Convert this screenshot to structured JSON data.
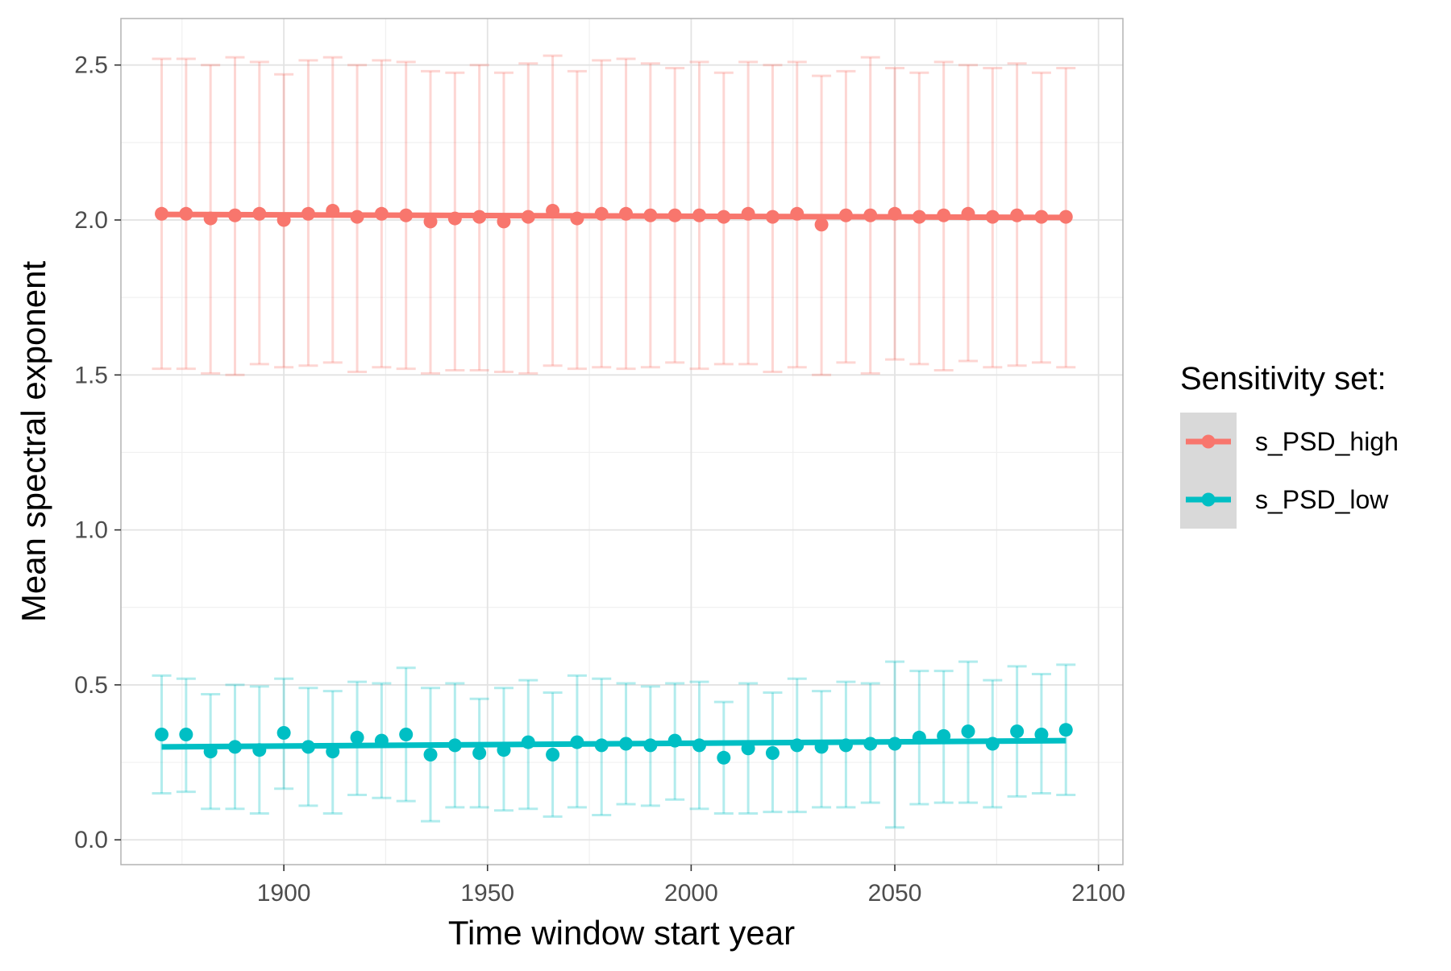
{
  "chart_data": {
    "type": "line",
    "title": "",
    "xlabel": "Time window start year",
    "ylabel": "Mean spectral exponent",
    "xlim": [
      1860,
      2106
    ],
    "ylim": [
      -0.08,
      2.65
    ],
    "x_ticks": [
      1900,
      1950,
      2000,
      2050,
      2100
    ],
    "y_ticks": [
      0.0,
      0.5,
      1.0,
      1.5,
      2.0,
      2.5
    ],
    "x_tick_labels": [
      "1900",
      "1950",
      "2000",
      "2050",
      "2100"
    ],
    "y_tick_labels": [
      "0.0",
      "0.5",
      "1.0",
      "1.5",
      "2.0",
      "2.5"
    ],
    "grid": true,
    "legend": {
      "title": "Sensitivity set:",
      "position": "right"
    },
    "x": [
      1870,
      1876,
      1882,
      1888,
      1894,
      1900,
      1906,
      1912,
      1918,
      1924,
      1930,
      1936,
      1942,
      1948,
      1954,
      1960,
      1966,
      1972,
      1978,
      1984,
      1990,
      1996,
      2002,
      2008,
      2014,
      2020,
      2026,
      2032,
      2038,
      2044,
      2050,
      2056,
      2062,
      2068,
      2074,
      2080,
      2086,
      2092
    ],
    "series": [
      {
        "name": "s_PSD_high",
        "color": "#F8766D",
        "values": [
          2.02,
          2.02,
          2.005,
          2.015,
          2.02,
          2.0,
          2.02,
          2.03,
          2.01,
          2.02,
          2.015,
          1.995,
          2.005,
          2.01,
          1.995,
          2.01,
          2.03,
          2.005,
          2.02,
          2.02,
          2.015,
          2.015,
          2.015,
          2.01,
          2.02,
          2.01,
          2.02,
          1.985,
          2.015,
          2.015,
          2.02,
          2.01,
          2.015,
          2.02,
          2.01,
          2.015,
          2.01,
          2.01
        ],
        "lower": [
          1.52,
          1.52,
          1.505,
          1.5,
          1.535,
          1.525,
          1.53,
          1.54,
          1.51,
          1.525,
          1.52,
          1.505,
          1.515,
          1.515,
          1.51,
          1.505,
          1.53,
          1.52,
          1.525,
          1.52,
          1.525,
          1.54,
          1.52,
          1.535,
          1.535,
          1.51,
          1.525,
          1.5,
          1.54,
          1.505,
          1.55,
          1.535,
          1.515,
          1.545,
          1.525,
          1.53,
          1.54,
          1.525
        ],
        "upper": [
          2.52,
          2.52,
          2.5,
          2.525,
          2.51,
          2.47,
          2.515,
          2.525,
          2.5,
          2.515,
          2.51,
          2.48,
          2.475,
          2.5,
          2.475,
          2.505,
          2.53,
          2.48,
          2.515,
          2.52,
          2.505,
          2.49,
          2.51,
          2.475,
          2.51,
          2.5,
          2.51,
          2.465,
          2.48,
          2.525,
          2.49,
          2.475,
          2.51,
          2.5,
          2.49,
          2.505,
          2.475,
          2.49
        ],
        "trend": [
          2.018,
          2.008
        ]
      },
      {
        "name": "s_PSD_low",
        "color": "#00BFC4",
        "values": [
          0.34,
          0.34,
          0.285,
          0.3,
          0.29,
          0.345,
          0.3,
          0.285,
          0.33,
          0.32,
          0.34,
          0.275,
          0.305,
          0.28,
          0.29,
          0.315,
          0.275,
          0.315,
          0.305,
          0.31,
          0.305,
          0.32,
          0.305,
          0.265,
          0.295,
          0.28,
          0.305,
          0.3,
          0.305,
          0.31,
          0.31,
          0.33,
          0.335,
          0.35,
          0.31,
          0.35,
          0.34,
          0.355
        ],
        "lower": [
          0.15,
          0.155,
          0.1,
          0.1,
          0.085,
          0.165,
          0.11,
          0.085,
          0.145,
          0.135,
          0.125,
          0.06,
          0.105,
          0.105,
          0.095,
          0.1,
          0.075,
          0.105,
          0.08,
          0.115,
          0.11,
          0.13,
          0.1,
          0.085,
          0.085,
          0.09,
          0.09,
          0.105,
          0.105,
          0.12,
          0.04,
          0.115,
          0.12,
          0.12,
          0.105,
          0.14,
          0.15,
          0.145
        ],
        "upper": [
          0.53,
          0.52,
          0.47,
          0.5,
          0.495,
          0.52,
          0.49,
          0.48,
          0.51,
          0.505,
          0.555,
          0.49,
          0.505,
          0.455,
          0.49,
          0.515,
          0.475,
          0.53,
          0.52,
          0.505,
          0.495,
          0.505,
          0.51,
          0.445,
          0.505,
          0.475,
          0.52,
          0.48,
          0.51,
          0.505,
          0.575,
          0.545,
          0.545,
          0.575,
          0.515,
          0.56,
          0.535,
          0.565
        ],
        "trend": [
          0.3,
          0.32
        ]
      }
    ]
  }
}
